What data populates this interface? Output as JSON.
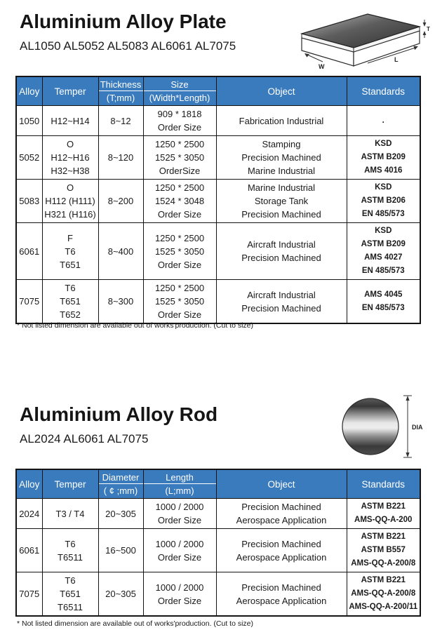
{
  "plate_section": {
    "title": "Aluminium Alloy Plate",
    "subtitle": "AL1050 AL5052 AL5083 AL6061 AL7075",
    "diagram_labels": {
      "width": "W",
      "length": "L",
      "thickness": "T"
    },
    "table": {
      "headers": {
        "alloy": "Alloy",
        "temper": "Temper",
        "thickness_top": "Thickness",
        "thickness_bottom": "(T;mm)",
        "size_top": "Size",
        "size_bottom": "(Width*Length)",
        "object": "Object",
        "standards": "Standards"
      },
      "rows": [
        {
          "alloy": "1050",
          "temper": [
            "H12~H14"
          ],
          "thickness": [
            "8~12"
          ],
          "size": [
            "909 * 1818",
            "Order Size"
          ],
          "object": [
            "Fabrication Industrial"
          ],
          "standards": [
            "."
          ]
        },
        {
          "alloy": "5052",
          "temper": [
            "O",
            "H12~H16",
            "H32~H38"
          ],
          "thickness": [
            "8~120"
          ],
          "size": [
            "1250 * 2500",
            "1525 * 3050",
            "OrderSize"
          ],
          "object": [
            "Stamping",
            "Precision Machined",
            "Marine Industrial"
          ],
          "standards": [
            "KSD",
            "ASTM B209",
            "AMS 4016"
          ]
        },
        {
          "alloy": "5083",
          "temper": [
            "O",
            "H112 (H111)",
            "H321 (H116)"
          ],
          "thickness": [
            "8~200"
          ],
          "size": [
            "1250 * 2500",
            "1524 * 3048",
            "Order Size"
          ],
          "object": [
            "Marine Industrial",
            "Storage Tank",
            "Precision Machined"
          ],
          "standards": [
            "KSD",
            "ASTM B206",
            "EN 485/573"
          ]
        },
        {
          "alloy": "6061",
          "temper": [
            "F",
            "T6",
            "T651"
          ],
          "thickness": [
            "8~400"
          ],
          "size": [
            "1250 * 2500",
            "1525 * 3050",
            "Order Size"
          ],
          "object": [
            "Aircraft Industrial",
            "Precision Machined"
          ],
          "standards": [
            "KSD",
            "ASTM B209",
            "AMS 4027",
            "EN 485/573"
          ]
        },
        {
          "alloy": "7075",
          "temper": [
            "T6",
            "T651",
            "T652"
          ],
          "thickness": [
            "8~300"
          ],
          "size": [
            "1250 * 2500",
            "1525 * 3050",
            "Order Size"
          ],
          "object": [
            "Aircraft Industrial",
            "Precision Machined"
          ],
          "standards": [
            "AMS 4045",
            "EN 485/573"
          ]
        }
      ]
    },
    "footnote": "* Not listed dimension are available out of works'production. (Cut to size)"
  },
  "rod_section": {
    "title": "Aluminium Alloy Rod",
    "subtitle": "AL2024 AL6061 AL7075",
    "diagram_labels": {
      "diameter": "DIA"
    },
    "table": {
      "headers": {
        "alloy": "Alloy",
        "temper": "Temper",
        "diameter_top": "Diameter",
        "diameter_bottom": "( ¢ ;mm)",
        "length_top": "Length",
        "length_bottom": "(L;mm)",
        "object": "Object",
        "standards": "Standards"
      },
      "rows": [
        {
          "alloy": "2024",
          "temper": [
            "T3 / T4"
          ],
          "diameter": [
            "20~305"
          ],
          "length": [
            "1000 / 2000",
            "Order Size"
          ],
          "object": [
            "Precision Machined",
            "Aerospace Application"
          ],
          "standards": [
            "ASTM B221",
            "AMS-QQ-A-200"
          ]
        },
        {
          "alloy": "6061",
          "temper": [
            "T6",
            "T6511"
          ],
          "diameter": [
            "16~500"
          ],
          "length": [
            "1000 / 2000",
            "Order Size"
          ],
          "object": [
            "Precision Machined",
            "Aerospace Application"
          ],
          "standards": [
            "ASTM B221",
            "ASTM B557",
            "AMS-QQ-A-200/8"
          ]
        },
        {
          "alloy": "7075",
          "temper": [
            "T6",
            "T651",
            "T6511"
          ],
          "diameter": [
            "20~305"
          ],
          "length": [
            "1000 / 2000",
            "Order Size"
          ],
          "object": [
            "Precision Machined",
            "Aerospace Application"
          ],
          "standards": [
            "ASTM B221",
            "AMS-QQ-A-200/8",
            "AMS-QQ-A-200/11"
          ]
        }
      ]
    },
    "footnote": "* Not listed dimension are available out of works'production. (Cut to size)"
  },
  "colors": {
    "header_blue": "#3A7BBE",
    "border": "#141414",
    "text": "#1A1A1A"
  }
}
